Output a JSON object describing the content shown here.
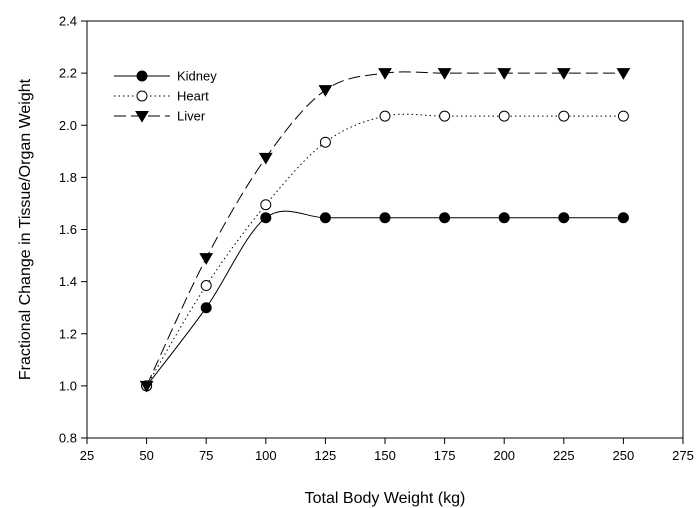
{
  "chart_data": {
    "type": "line",
    "xlabel": "Total Body Weight (kg)",
    "ylabel": "Fractional Change in Tissue/Organ Weight",
    "xlim": [
      25,
      275
    ],
    "ylim": [
      0.8,
      2.4
    ],
    "xticks": [
      "25",
      "50",
      "75",
      "100",
      "125",
      "150",
      "175",
      "200",
      "225",
      "250",
      "275"
    ],
    "yticks": [
      "0.8",
      "1.0",
      "1.2",
      "1.4",
      "1.6",
      "1.8",
      "2.0",
      "2.2",
      "2.4"
    ],
    "grid": false,
    "legend_position": "top-left",
    "x": [
      50,
      75,
      100,
      125,
      150,
      175,
      200,
      225,
      250
    ],
    "series": [
      {
        "name": "Kidney",
        "marker": "filled-circle",
        "line_style": "solid",
        "values": [
          1.0,
          1.3,
          1.645,
          1.645,
          1.645,
          1.645,
          1.645,
          1.645,
          1.645
        ]
      },
      {
        "name": "Heart",
        "marker": "open-circle",
        "line_style": "dotted",
        "values": [
          1.0,
          1.385,
          1.695,
          1.935,
          2.035,
          2.035,
          2.035,
          2.035,
          2.035
        ]
      },
      {
        "name": "Liver",
        "marker": "filled-down-triangle",
        "line_style": "dashed",
        "values": [
          1.0,
          1.49,
          1.875,
          2.135,
          2.2,
          2.2,
          2.2,
          2.2,
          2.2
        ]
      }
    ]
  }
}
